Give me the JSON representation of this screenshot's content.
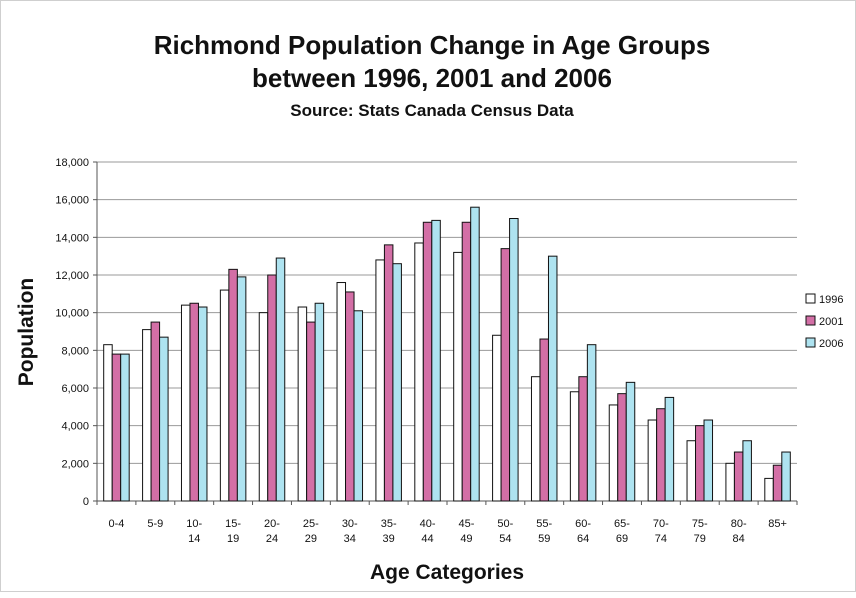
{
  "chart_data": {
    "type": "bar",
    "title_line1": "Richmond Population Change in Age Groups",
    "title_line2": "between 1996, 2001 and 2006",
    "subtitle": "Source: Stats Canada Census Data",
    "xlabel": "Age Categories",
    "ylabel": "Population",
    "ylim": [
      0,
      18000
    ],
    "yticks": [
      0,
      2000,
      4000,
      6000,
      8000,
      10000,
      12000,
      14000,
      16000,
      18000
    ],
    "ytick_labels": [
      "0",
      "2,000",
      "4,000",
      "6,000",
      "8,000",
      "10,000",
      "12,000",
      "14,000",
      "16,000",
      "18,000"
    ],
    "grid": true,
    "legend_position": "right",
    "categories": [
      "0-4",
      "5-9",
      "10-14",
      "15-19",
      "20-24",
      "25-29",
      "30-34",
      "35-39",
      "40-44",
      "45-49",
      "50-54",
      "55-59",
      "60-64",
      "65-69",
      "70-74",
      "75-79",
      "80-84",
      "85+"
    ],
    "category_labels": [
      [
        "0-4"
      ],
      [
        "5-9"
      ],
      [
        "10-",
        "14"
      ],
      [
        "15-",
        "19"
      ],
      [
        "20-",
        "24"
      ],
      [
        "25-",
        "29"
      ],
      [
        "30-",
        "34"
      ],
      [
        "35-",
        "39"
      ],
      [
        "40-",
        "44"
      ],
      [
        "45-",
        "49"
      ],
      [
        "50-",
        "54"
      ],
      [
        "55-",
        "59"
      ],
      [
        "60-",
        "64"
      ],
      [
        "65-",
        "69"
      ],
      [
        "70-",
        "74"
      ],
      [
        "75-",
        "79"
      ],
      [
        "80-",
        "84"
      ],
      [
        "85+"
      ]
    ],
    "series": [
      {
        "name": "1996",
        "color": "#ffffff",
        "values": [
          8300,
          9100,
          10400,
          11200,
          10000,
          10300,
          11600,
          12800,
          13700,
          13200,
          8800,
          6600,
          5800,
          5100,
          4300,
          3200,
          2000,
          1200
        ]
      },
      {
        "name": "2001",
        "color": "#d36fa6",
        "values": [
          7800,
          9500,
          10500,
          12300,
          12000,
          9500,
          11100,
          13600,
          14800,
          14800,
          13400,
          8600,
          6600,
          5700,
          4900,
          4000,
          2600,
          1900
        ]
      },
      {
        "name": "2006",
        "color": "#aee3f0",
        "values": [
          7800,
          8700,
          10300,
          11900,
          12900,
          10500,
          10100,
          12600,
          14900,
          15600,
          15000,
          13000,
          8300,
          6300,
          5500,
          4300,
          3200,
          2600
        ]
      }
    ]
  }
}
